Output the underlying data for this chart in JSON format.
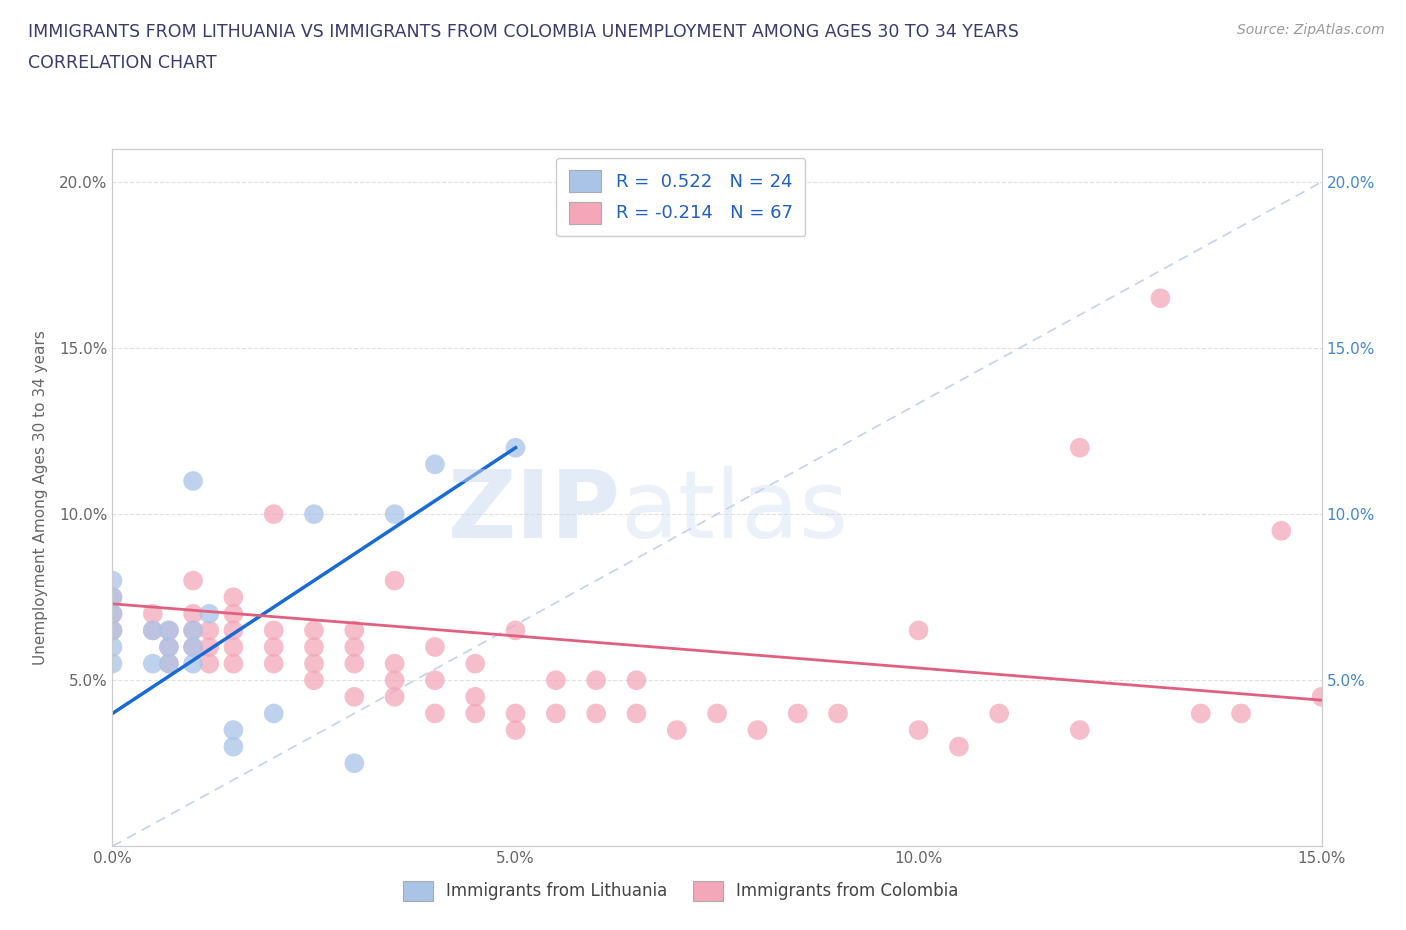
{
  "title_line1": "IMMIGRANTS FROM LITHUANIA VS IMMIGRANTS FROM COLOMBIA UNEMPLOYMENT AMONG AGES 30 TO 34 YEARS",
  "title_line2": "CORRELATION CHART",
  "source_text": "Source: ZipAtlas.com",
  "ylabel": "Unemployment Among Ages 30 to 34 years",
  "xlim": [
    0.0,
    0.15
  ],
  "ylim": [
    0.0,
    0.21
  ],
  "xticks": [
    0.0,
    0.025,
    0.05,
    0.075,
    0.1,
    0.125,
    0.15
  ],
  "xticklabels": [
    "0.0%",
    "",
    "5.0%",
    "",
    "10.0%",
    "",
    "15.0%"
  ],
  "yticks_left": [
    0.0,
    0.05,
    0.1,
    0.15,
    0.2
  ],
  "yticklabels_left": [
    "",
    "5.0%",
    "10.0%",
    "15.0%",
    "20.0%"
  ],
  "yticks_right": [
    0.05,
    0.1,
    0.15,
    0.2
  ],
  "yticklabels_right": [
    "5.0%",
    "10.0%",
    "15.0%",
    "20.0%"
  ],
  "legend_r1": "R =  0.522   N = 24",
  "legend_r2": "R = -0.214   N = 67",
  "watermark_zip": "ZIP",
  "watermark_atlas": "atlas",
  "color_lithuania": "#aac4e8",
  "color_colombia": "#f4a7b9",
  "color_line_lithuania": "#1a6ad4",
  "color_line_colombia": "#e06080",
  "color_title": "#3a3a6e",
  "color_legend_text": "#2060c0",
  "color_grid": "#e0e0e0",
  "R_lithuania": 0.522,
  "N_lithuania": 24,
  "R_colombia": -0.214,
  "N_colombia": 67,
  "lithuania_x": [
    0.0,
    0.0,
    0.0,
    0.0,
    0.0,
    0.0,
    0.005,
    0.005,
    0.007,
    0.007,
    0.007,
    0.01,
    0.01,
    0.01,
    0.01,
    0.012,
    0.015,
    0.015,
    0.02,
    0.025,
    0.03,
    0.035,
    0.04,
    0.05
  ],
  "lithuania_y": [
    0.055,
    0.06,
    0.065,
    0.07,
    0.075,
    0.08,
    0.055,
    0.065,
    0.055,
    0.06,
    0.065,
    0.055,
    0.06,
    0.065,
    0.11,
    0.07,
    0.03,
    0.035,
    0.04,
    0.1,
    0.025,
    0.1,
    0.115,
    0.12
  ],
  "colombia_x": [
    0.0,
    0.0,
    0.0,
    0.005,
    0.005,
    0.007,
    0.007,
    0.007,
    0.01,
    0.01,
    0.01,
    0.01,
    0.012,
    0.012,
    0.012,
    0.015,
    0.015,
    0.015,
    0.015,
    0.015,
    0.02,
    0.02,
    0.02,
    0.02,
    0.025,
    0.025,
    0.025,
    0.025,
    0.03,
    0.03,
    0.03,
    0.03,
    0.035,
    0.035,
    0.035,
    0.035,
    0.04,
    0.04,
    0.04,
    0.045,
    0.045,
    0.045,
    0.05,
    0.05,
    0.05,
    0.055,
    0.055,
    0.06,
    0.06,
    0.065,
    0.065,
    0.07,
    0.075,
    0.08,
    0.085,
    0.09,
    0.1,
    0.1,
    0.105,
    0.11,
    0.12,
    0.12,
    0.13,
    0.135,
    0.14,
    0.145,
    0.15
  ],
  "colombia_y": [
    0.065,
    0.07,
    0.075,
    0.065,
    0.07,
    0.055,
    0.06,
    0.065,
    0.06,
    0.065,
    0.07,
    0.08,
    0.055,
    0.06,
    0.065,
    0.055,
    0.06,
    0.065,
    0.07,
    0.075,
    0.055,
    0.06,
    0.065,
    0.1,
    0.05,
    0.055,
    0.06,
    0.065,
    0.045,
    0.055,
    0.06,
    0.065,
    0.045,
    0.05,
    0.055,
    0.08,
    0.04,
    0.05,
    0.06,
    0.04,
    0.045,
    0.055,
    0.035,
    0.04,
    0.065,
    0.04,
    0.05,
    0.04,
    0.05,
    0.04,
    0.05,
    0.035,
    0.04,
    0.035,
    0.04,
    0.04,
    0.035,
    0.065,
    0.03,
    0.04,
    0.035,
    0.12,
    0.165,
    0.04,
    0.04,
    0.095,
    0.045
  ],
  "lith_line_x": [
    0.0,
    0.05
  ],
  "lith_line_y": [
    0.04,
    0.12
  ],
  "col_line_x": [
    0.0,
    0.15
  ],
  "col_line_y": [
    0.073,
    0.044
  ]
}
